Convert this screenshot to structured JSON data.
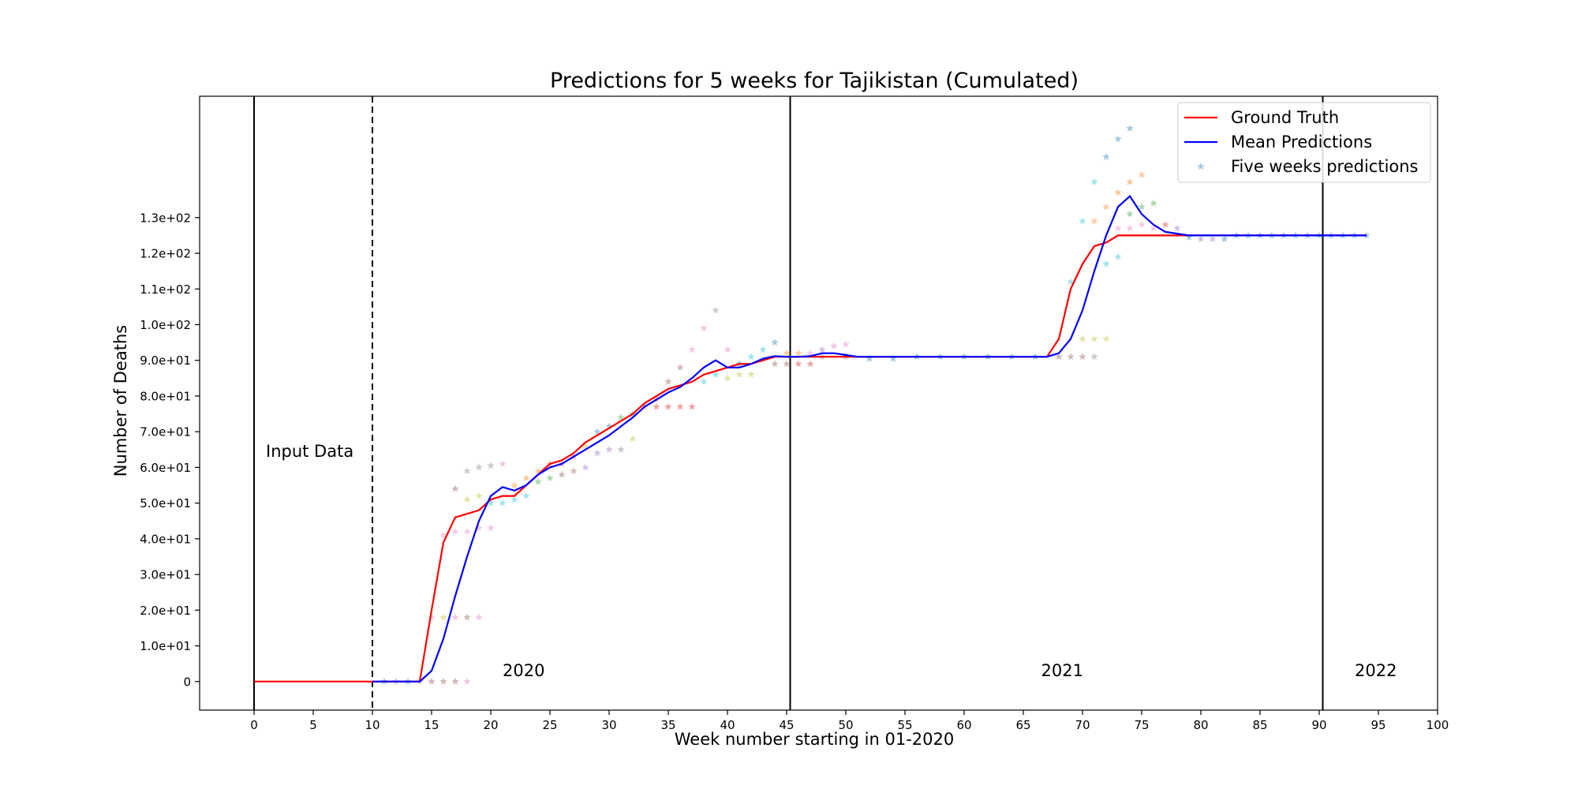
{
  "chart_data": {
    "type": "line",
    "title": "Predictions for 5 weeks for Tajikistan (Cumulated)",
    "xlabel": "Week number starting in 01-2020",
    "ylabel": "Number of Deaths",
    "xlim": [
      -4.6,
      100
    ],
    "ylim": [
      -8,
      164
    ],
    "x_ticks": [
      0,
      5,
      10,
      15,
      20,
      25,
      30,
      35,
      40,
      45,
      50,
      55,
      60,
      65,
      70,
      75,
      80,
      85,
      90,
      95,
      100
    ],
    "y_ticks": [
      {
        "value": 0,
        "label": "0"
      },
      {
        "value": 10,
        "label": "1.0e+01"
      },
      {
        "value": 20,
        "label": "2.0e+01"
      },
      {
        "value": 30,
        "label": "3.0e+01"
      },
      {
        "value": 40,
        "label": "4.0e+01"
      },
      {
        "value": 50,
        "label": "5.0e+01"
      },
      {
        "value": 60,
        "label": "6.0e+01"
      },
      {
        "value": 70,
        "label": "7.0e+01"
      },
      {
        "value": 80,
        "label": "8.0e+01"
      },
      {
        "value": 90,
        "label": "9.0e+01"
      },
      {
        "value": 100,
        "label": "1.0e+02"
      },
      {
        "value": 110,
        "label": "1.1e+02"
      },
      {
        "value": 120,
        "label": "1.2e+02"
      },
      {
        "value": 130,
        "label": "1.3e+02"
      }
    ],
    "grid": false,
    "legend_position": "top-right",
    "legend": [
      {
        "label": "Ground Truth",
        "color": "#ff0000",
        "style": "line"
      },
      {
        "label": "Mean Predictions",
        "color": "#0000ff",
        "style": "line"
      },
      {
        "label": "Five weeks predictions",
        "color": "#1f77b4",
        "style": "star"
      }
    ],
    "annotations": [
      {
        "text": "Input Data",
        "x": 1,
        "y": 63
      },
      {
        "text": "2020",
        "x": 21,
        "y": 1.5
      },
      {
        "text": "2021",
        "x": 66.5,
        "y": 1.5
      },
      {
        "text": "2022",
        "x": 93,
        "y": 1.5
      }
    ],
    "vertical_lines": [
      {
        "x": 0,
        "style": "solid"
      },
      {
        "x": 10,
        "style": "dashed"
      },
      {
        "x": 45.3,
        "style": "solid"
      },
      {
        "x": 90.3,
        "style": "solid"
      }
    ],
    "series": [
      {
        "name": "Ground Truth",
        "color": "#ff0000",
        "x": [
          0,
          1,
          2,
          3,
          4,
          5,
          6,
          7,
          8,
          9,
          10,
          11,
          12,
          13,
          14,
          15,
          16,
          17,
          18,
          19,
          20,
          21,
          22,
          23,
          24,
          25,
          26,
          27,
          28,
          29,
          30,
          31,
          32,
          33,
          34,
          35,
          36,
          37,
          38,
          39,
          40,
          41,
          42,
          43,
          44,
          45,
          46,
          47,
          48,
          49,
          50,
          51,
          52,
          53,
          54,
          55,
          56,
          57,
          58,
          59,
          60,
          61,
          62,
          63,
          64,
          65,
          66,
          67,
          68,
          69,
          70,
          71,
          72,
          73,
          74,
          75,
          76,
          77,
          78,
          79,
          80,
          81,
          82,
          83,
          84,
          85,
          86,
          87,
          88,
          89,
          90,
          91,
          92,
          93,
          94
        ],
        "values": [
          0,
          0,
          0,
          0,
          0,
          0,
          0,
          0,
          0,
          0,
          0,
          0,
          0,
          0,
          0,
          20,
          39,
          46,
          47,
          48,
          51,
          52,
          52,
          55,
          58,
          61,
          62,
          64,
          67,
          69,
          71,
          73,
          75,
          78,
          80,
          82,
          83,
          84,
          86,
          87,
          88,
          89,
          89,
          90,
          91,
          91,
          91,
          91,
          91,
          91,
          91,
          91,
          91,
          91,
          91,
          91,
          91,
          91,
          91,
          91,
          91,
          91,
          91,
          91,
          91,
          91,
          91,
          91,
          96,
          110,
          117,
          122,
          123,
          125,
          125,
          125,
          125,
          125,
          125,
          125,
          125,
          125,
          125,
          125,
          125,
          125,
          125,
          125,
          125,
          125,
          125,
          125,
          125,
          125,
          125
        ]
      },
      {
        "name": "Mean Predictions",
        "color": "#0000ff",
        "x": [
          10,
          11,
          12,
          13,
          14,
          15,
          16,
          17,
          18,
          19,
          20,
          21,
          22,
          23,
          24,
          25,
          26,
          27,
          28,
          29,
          30,
          31,
          32,
          33,
          34,
          35,
          36,
          37,
          38,
          39,
          40,
          41,
          42,
          43,
          44,
          45,
          46,
          47,
          48,
          49,
          50,
          51,
          52,
          53,
          54,
          55,
          56,
          57,
          58,
          59,
          60,
          61,
          62,
          63,
          64,
          65,
          66,
          67,
          68,
          69,
          70,
          71,
          72,
          73,
          74,
          75,
          76,
          77,
          78,
          79,
          80,
          81,
          82,
          83,
          84,
          85,
          86,
          87,
          88,
          89,
          90,
          91,
          92,
          93,
          94
        ],
        "values": [
          0,
          0,
          0,
          0,
          0,
          3,
          12,
          24,
          35,
          45,
          52,
          54.5,
          53.5,
          55,
          58,
          60,
          61,
          63,
          65,
          67,
          69,
          71.5,
          74,
          77,
          79,
          81,
          82.5,
          85,
          88,
          90,
          88,
          88,
          89,
          90.5,
          91.2,
          91,
          91,
          91.2,
          92,
          92,
          91.5,
          91,
          91,
          91,
          91,
          91,
          91,
          91,
          91,
          91,
          91,
          91,
          91,
          91,
          91,
          91,
          91,
          91,
          92,
          96,
          104,
          115,
          125,
          133,
          136,
          131,
          128,
          126,
          125.5,
          125,
          125,
          125,
          125,
          125,
          125,
          125,
          125,
          125,
          125,
          125,
          125,
          125,
          125,
          125,
          125
        ]
      }
    ],
    "scatter": {
      "name": "Five weeks predictions",
      "points": [
        [
          11,
          0,
          "#1f77b4"
        ],
        [
          12,
          0,
          "#9467bd"
        ],
        [
          13,
          0,
          "#1f77b4"
        ],
        [
          14,
          0,
          "#9467bd"
        ],
        [
          15,
          0,
          "#8c564b"
        ],
        [
          16,
          0,
          "#8c564b"
        ],
        [
          17,
          0,
          "#8c564b"
        ],
        [
          18,
          0,
          "#e377c2"
        ],
        [
          15,
          18,
          "#e377c2"
        ],
        [
          16,
          18,
          "#bcbd22"
        ],
        [
          17,
          18,
          "#e377c2"
        ],
        [
          18,
          18,
          "#8c564b"
        ],
        [
          19,
          18,
          "#e377c2"
        ],
        [
          16,
          41,
          "#e377c2"
        ],
        [
          17,
          42,
          "#e377c2"
        ],
        [
          18,
          42,
          "#e377c2"
        ],
        [
          19,
          43,
          "#e377c2"
        ],
        [
          20,
          43,
          "#e377c2"
        ],
        [
          17,
          54,
          "#8c564b"
        ],
        [
          18,
          51,
          "#bcbd22"
        ],
        [
          19,
          52,
          "#bcbd22"
        ],
        [
          20,
          50,
          "#17becf"
        ],
        [
          21,
          50,
          "#17becf"
        ],
        [
          22,
          51,
          "#17becf"
        ],
        [
          18,
          59,
          "#7f7f7f"
        ],
        [
          19,
          60,
          "#7f7f7f"
        ],
        [
          20,
          60.5,
          "#7f7f7f"
        ],
        [
          21,
          61,
          "#e377c2"
        ],
        [
          22,
          55,
          "#ff7f0e"
        ],
        [
          23,
          57,
          "#ff7f0e"
        ],
        [
          24,
          59,
          "#ff7f0e"
        ],
        [
          25,
          61,
          "#ff7f0e"
        ],
        [
          23,
          52,
          "#17becf"
        ],
        [
          24,
          56,
          "#2ca02c"
        ],
        [
          25,
          57,
          "#2ca02c"
        ],
        [
          26,
          58,
          "#8c564b"
        ],
        [
          27,
          59,
          "#8c564b"
        ],
        [
          28,
          60,
          "#9467bd"
        ],
        [
          26,
          61,
          "#d62728"
        ],
        [
          27,
          63,
          "#d62728"
        ],
        [
          28,
          66,
          "#bcbd22"
        ],
        [
          29,
          64,
          "#9467bd"
        ],
        [
          30,
          65,
          "#9467bd"
        ],
        [
          31,
          65,
          "#7f7f7f"
        ],
        [
          29,
          70,
          "#1f77b4"
        ],
        [
          30,
          71.5,
          "#1f77b4"
        ],
        [
          31,
          74,
          "#2ca02c"
        ],
        [
          32,
          75,
          "#2ca02c"
        ],
        [
          32,
          68,
          "#bcbd22"
        ],
        [
          33,
          77,
          "#ff7f0e"
        ],
        [
          34,
          79,
          "#ff7f0e"
        ],
        [
          34,
          77,
          "#d62728"
        ],
        [
          35,
          77,
          "#d62728"
        ],
        [
          36,
          77,
          "#d62728"
        ],
        [
          37,
          77,
          "#d62728"
        ],
        [
          35,
          84,
          "#8c564b"
        ],
        [
          36,
          88,
          "#8c564b"
        ],
        [
          37,
          93,
          "#e377c2"
        ],
        [
          38,
          99,
          "#e377c2"
        ],
        [
          39,
          104,
          "#7f7f7f"
        ],
        [
          38,
          84,
          "#17becf"
        ],
        [
          39,
          86,
          "#17becf"
        ],
        [
          40,
          93,
          "#e377c2"
        ],
        [
          40,
          85,
          "#bcbd22"
        ],
        [
          41,
          86,
          "#bcbd22"
        ],
        [
          42,
          86,
          "#bcbd22"
        ],
        [
          41,
          89,
          "#1f77b4"
        ],
        [
          42,
          91,
          "#17becf"
        ],
        [
          43,
          93,
          "#17becf"
        ],
        [
          44,
          95,
          "#1f77b4"
        ],
        [
          44,
          89,
          "#8c564b"
        ],
        [
          45,
          89,
          "#8c564b"
        ],
        [
          46,
          89,
          "#d62728"
        ],
        [
          47,
          89,
          "#d62728"
        ],
        [
          45,
          92,
          "#ff7f0e"
        ],
        [
          46,
          92,
          "#ff7f0e"
        ],
        [
          47,
          92,
          "#e377c2"
        ],
        [
          48,
          93,
          "#9467bd"
        ],
        [
          49,
          94,
          "#e377c2"
        ],
        [
          50,
          94.5,
          "#e377c2"
        ],
        [
          48,
          91,
          "#7f7f7f"
        ],
        [
          50,
          91,
          "#7f7f7f"
        ],
        [
          52,
          90.5,
          "#1f77b4"
        ],
        [
          54,
          90.5,
          "#1f77b4"
        ],
        [
          56,
          91,
          "#1f77b4"
        ],
        [
          58,
          91,
          "#1f77b4"
        ],
        [
          60,
          91,
          "#1f77b4"
        ],
        [
          62,
          91,
          "#1f77b4"
        ],
        [
          64,
          91,
          "#1f77b4"
        ],
        [
          66,
          91,
          "#1f77b4"
        ],
        [
          68,
          91,
          "#8c564b"
        ],
        [
          69,
          91,
          "#8c564b"
        ],
        [
          70,
          91,
          "#8c564b"
        ],
        [
          71,
          91,
          "#7f7f7f"
        ],
        [
          70,
          96,
          "#bcbd22"
        ],
        [
          71,
          96,
          "#bcbd22"
        ],
        [
          72,
          96,
          "#bcbd22"
        ],
        [
          69,
          112,
          "#17becf"
        ],
        [
          70,
          129,
          "#17becf"
        ],
        [
          71,
          140,
          "#17becf"
        ],
        [
          72,
          147,
          "#1f77b4"
        ],
        [
          73,
          152,
          "#1f77b4"
        ],
        [
          74,
          155,
          "#1f77b4"
        ],
        [
          71,
          129,
          "#ff7f0e"
        ],
        [
          72,
          133,
          "#ff7f0e"
        ],
        [
          73,
          137,
          "#ff7f0e"
        ],
        [
          74,
          140,
          "#ff7f0e"
        ],
        [
          75,
          142,
          "#ff7f0e"
        ],
        [
          72,
          117,
          "#17becf"
        ],
        [
          73,
          119,
          "#17becf"
        ],
        [
          74,
          131,
          "#2ca02c"
        ],
        [
          75,
          133,
          "#2ca02c"
        ],
        [
          76,
          134,
          "#2ca02c"
        ],
        [
          73,
          127,
          "#e377c2"
        ],
        [
          74,
          127,
          "#e377c2"
        ],
        [
          75,
          128,
          "#e377c2"
        ],
        [
          76,
          127,
          "#e377c2"
        ],
        [
          77,
          128,
          "#d62728"
        ],
        [
          78,
          127,
          "#9467bd"
        ],
        [
          79,
          124.5,
          "#1f77b4"
        ],
        [
          80,
          124,
          "#9467bd"
        ],
        [
          81,
          124,
          "#9467bd"
        ],
        [
          82,
          124,
          "#1f77b4"
        ],
        [
          83,
          125,
          "#1f77b4"
        ],
        [
          84,
          125,
          "#1f77b4"
        ],
        [
          85,
          125,
          "#1f77b4"
        ],
        [
          86,
          125,
          "#1f77b4"
        ],
        [
          87,
          125,
          "#1f77b4"
        ],
        [
          88,
          125,
          "#1f77b4"
        ],
        [
          89,
          125,
          "#1f77b4"
        ],
        [
          90,
          125,
          "#1f77b4"
        ],
        [
          91,
          125,
          "#1f77b4"
        ],
        [
          92,
          125,
          "#1f77b4"
        ],
        [
          93,
          125,
          "#1f77b4"
        ],
        [
          94,
          125,
          "#1f77b4"
        ]
      ]
    }
  }
}
